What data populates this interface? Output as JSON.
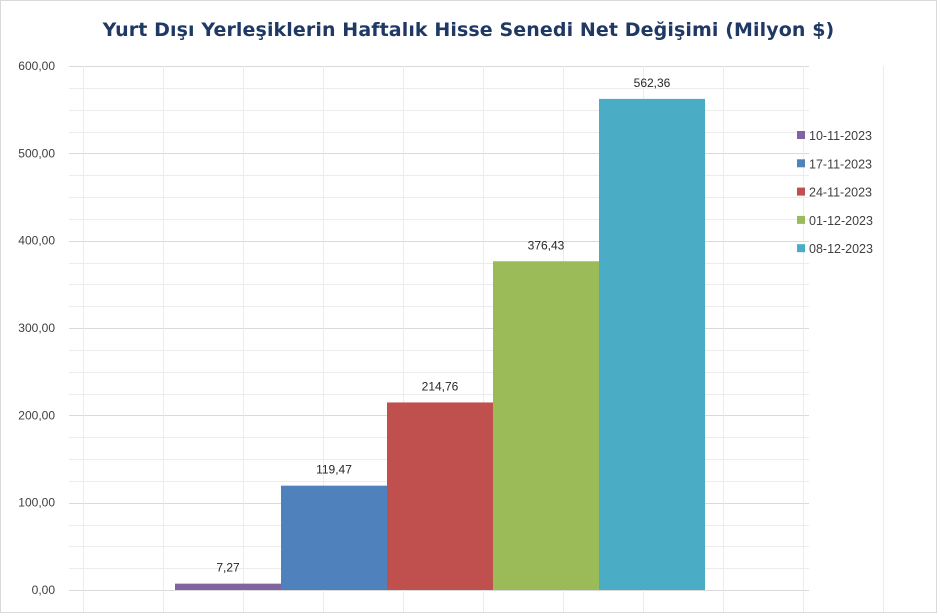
{
  "chart_data": {
    "type": "bar",
    "title": "Yurt Dışı Yerleşiklerin Haftalık Hisse Senedi Net Değişimi (Milyon $)",
    "categories": [
      "10-11-2023",
      "17-11-2023",
      "24-11-2023",
      "01-12-2023",
      "08-12-2023"
    ],
    "values": [
      7.27,
      119.47,
      214.76,
      376.43,
      562.36
    ],
    "data_labels": [
      "7,27",
      "119,47",
      "214,76",
      "376,43",
      "562,36"
    ],
    "colors": [
      "#8064a2",
      "#4f81bd",
      "#c0504d",
      "#9bbb59",
      "#4bacc6"
    ],
    "ylim": [
      0,
      600
    ],
    "y_ticks": [
      0,
      100,
      200,
      300,
      400,
      500,
      600
    ],
    "y_tick_labels": [
      "0,00",
      "100,00",
      "200,00",
      "300,00",
      "400,00",
      "500,00",
      "600,00"
    ],
    "grid": true,
    "legend_position": "right"
  }
}
